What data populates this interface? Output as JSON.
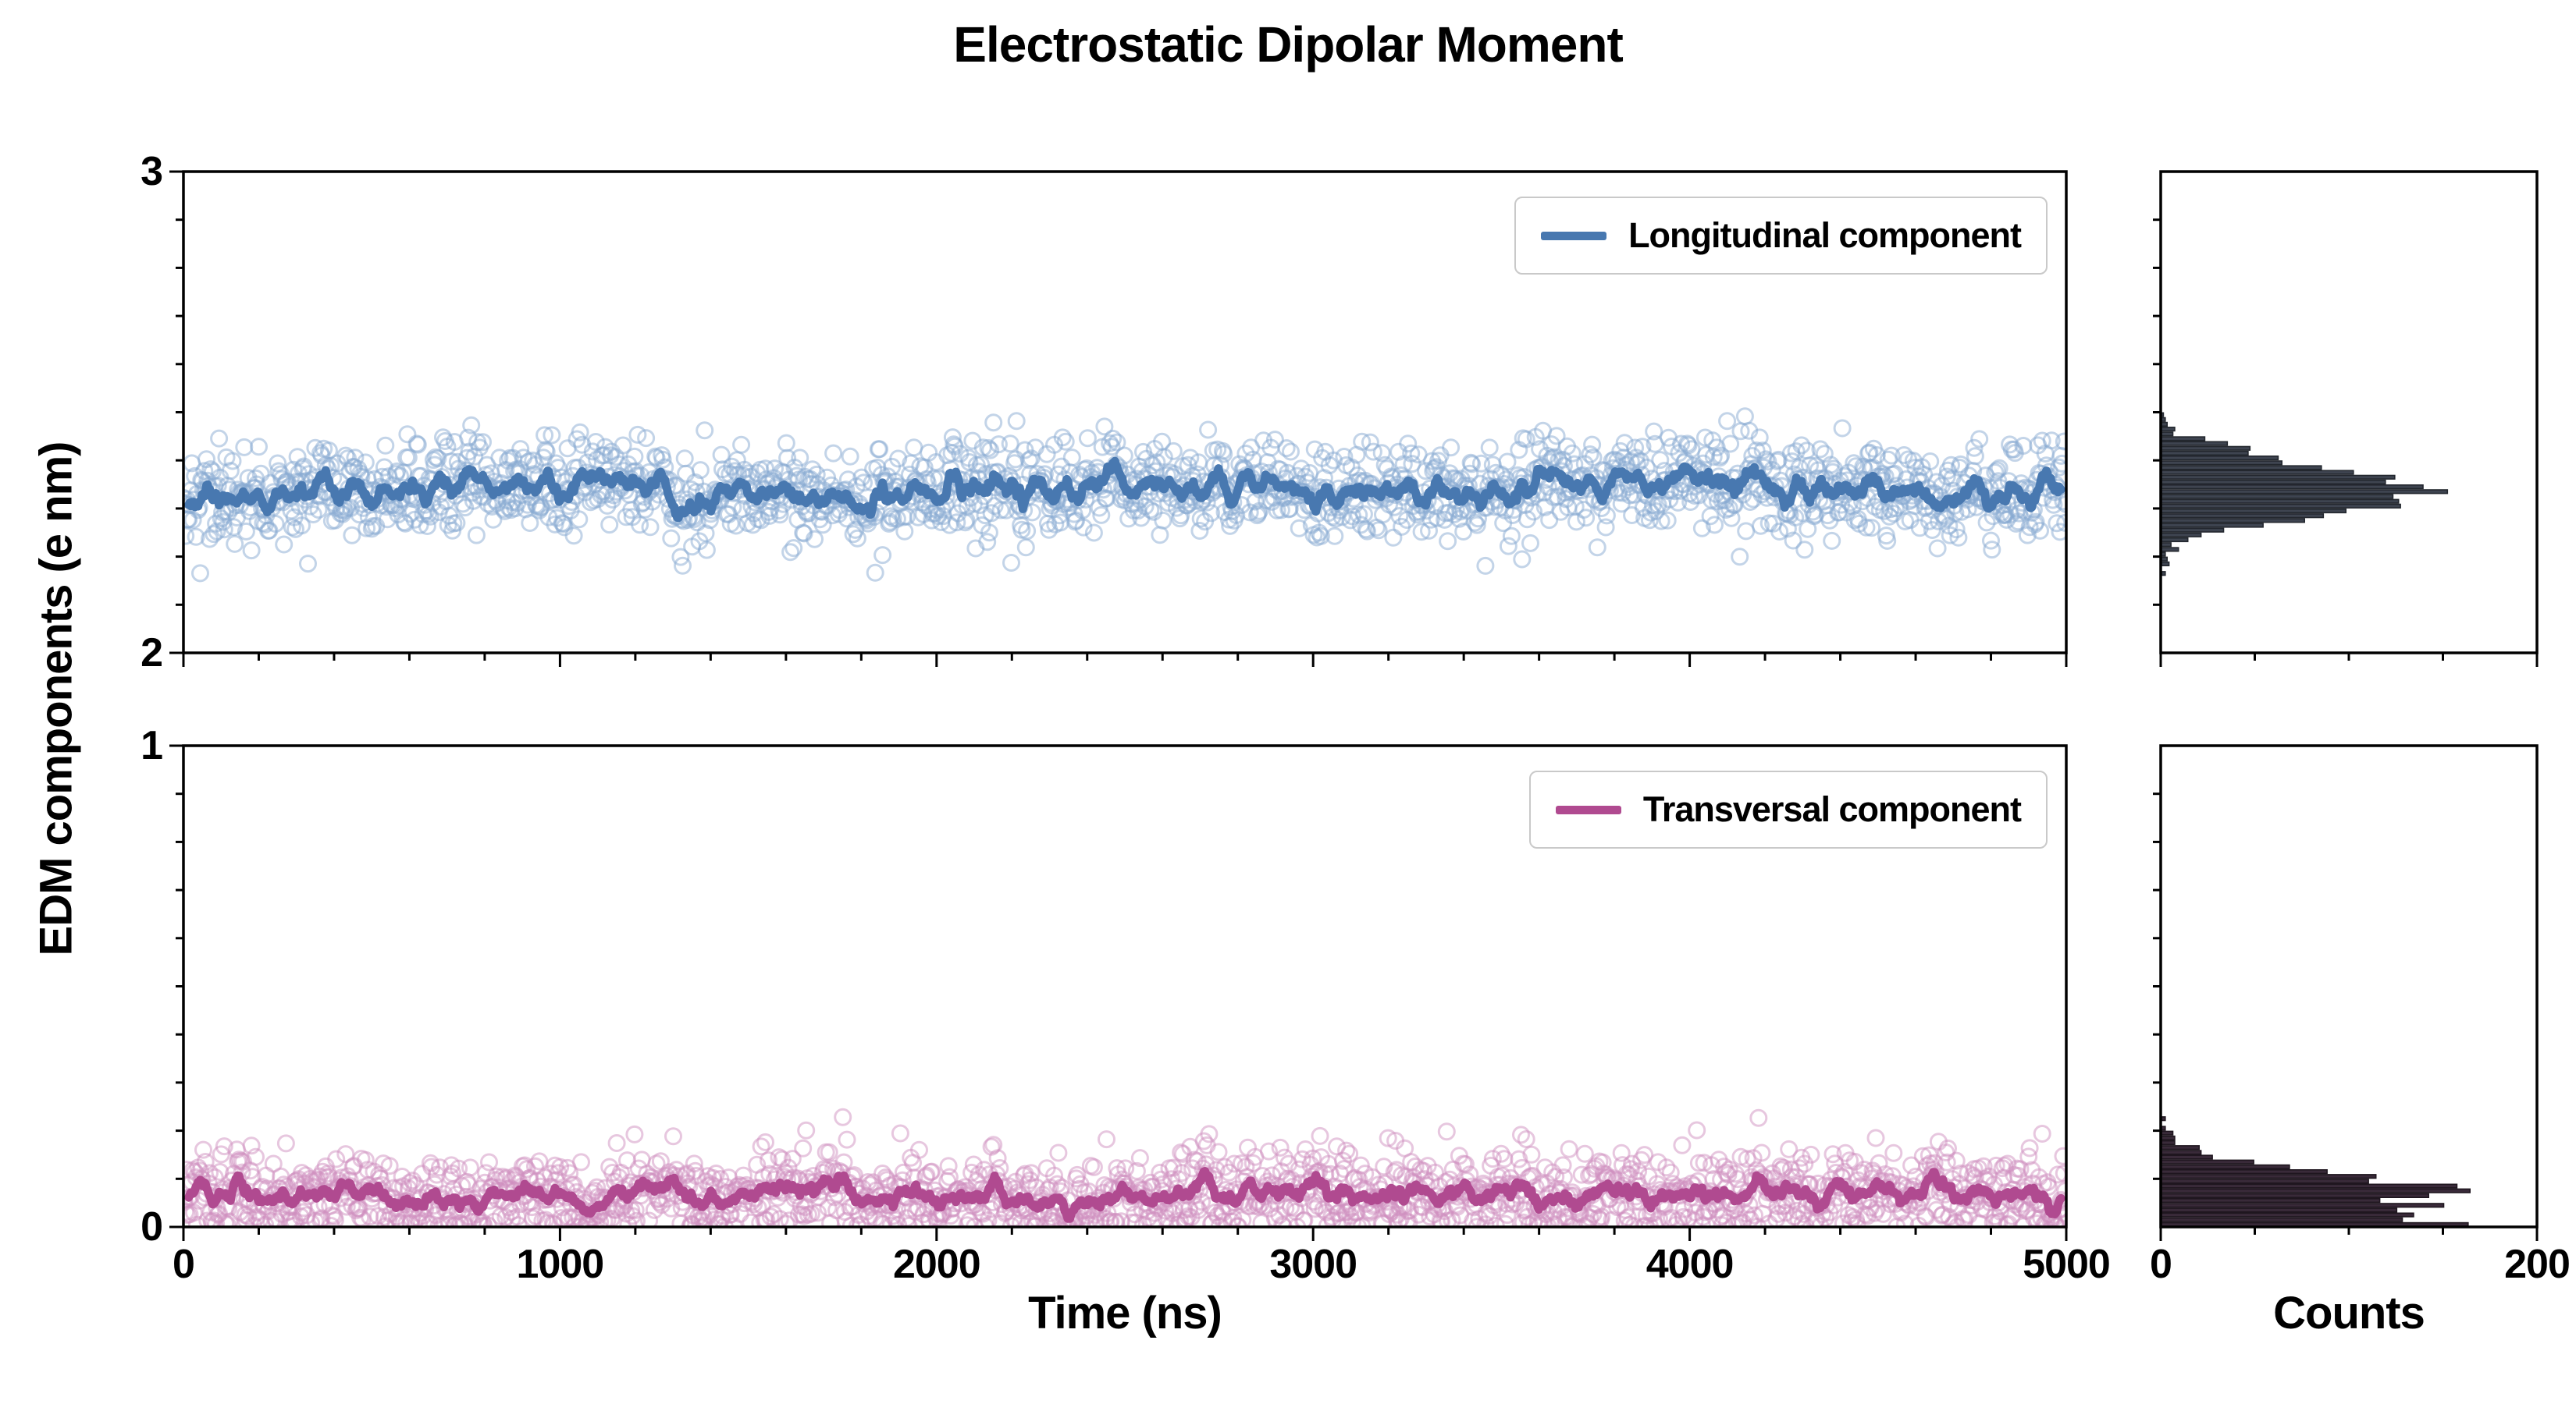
{
  "title": "Electrostatic Dipolar Moment",
  "axes": {
    "x_label": "Time (ns)",
    "y_label": "EDM components (e nm)",
    "counts_label": "Counts"
  },
  "chart_data": {
    "type": "scatter",
    "description": "Two stacked time-series panels of EDM components with running-mean lines and marginal count histograms on the right.",
    "x": {
      "label": "Time (ns)",
      "range": [
        0,
        5000
      ],
      "ticks": [
        0,
        1000,
        2000,
        3000,
        4000,
        5000
      ],
      "minor_tick_step": 200
    },
    "counts_axis": {
      "label": "Counts",
      "range": [
        0,
        200
      ],
      "ticks": [
        0,
        200
      ],
      "minor_tick_step": 50
    },
    "panels": [
      {
        "name": "longitudinal",
        "legend": "Longitudinal component",
        "y_range": [
          2,
          3
        ],
        "y_ticks": [
          2,
          3
        ],
        "y_minor_step": 0.1,
        "series": {
          "n_points": 1800,
          "t_start": 0,
          "t_end": 5000,
          "mean": 2.34,
          "std": 0.05,
          "observed_min": 2.1,
          "observed_max": 2.52,
          "running_mean_level": 2.34,
          "running_mean_window": 11,
          "distribution": "normal"
        },
        "histogram": {
          "bin_width": 0.01,
          "peak_count": 145,
          "peak_at": 2.35
        },
        "colors": {
          "scatter": "#88a9d2",
          "line": "#4878b0",
          "hist_fill": "#3e4450",
          "hist_edge": "#23272e"
        },
        "seed": 42
      },
      {
        "name": "transversal",
        "legend": "Transversal component",
        "y_range": [
          0,
          1
        ],
        "y_ticks": [
          0,
          1
        ],
        "y_minor_step": 0.1,
        "series": {
          "n_points": 1800,
          "t_start": 0,
          "t_end": 5000,
          "mean": 0.06,
          "std": 0.048,
          "observed_min": 0.0,
          "observed_max": 0.28,
          "running_mean_level": 0.065,
          "running_mean_window": 11,
          "distribution": "folded-normal"
        },
        "histogram": {
          "bin_width": 0.01,
          "peak_count": 150,
          "peak_at": 0.05
        },
        "colors": {
          "scatter": "#cf90c0",
          "line": "#b04a90",
          "hist_fill": "#392a39",
          "hist_edge": "#1f161f"
        },
        "seed": 1337
      }
    ],
    "layout": {
      "legend_position": "upper right",
      "grid": false,
      "spine_color": "#000000",
      "background": "#ffffff"
    }
  }
}
